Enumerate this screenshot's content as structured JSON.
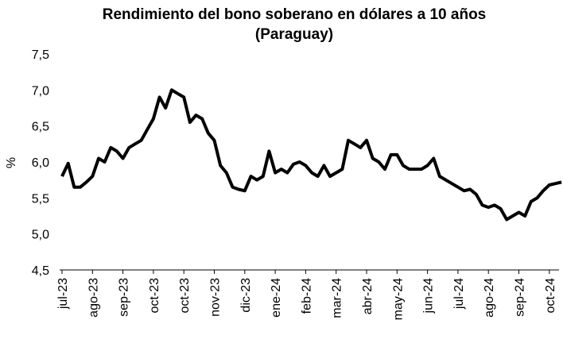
{
  "chart_data": {
    "type": "line",
    "title": [
      "Rendimiento del bono soberano en dólares a 10 años",
      "(Paraguay)"
    ],
    "y_label": "%",
    "color": "#000000",
    "categories": [
      "jul-23",
      null,
      null,
      null,
      null,
      "ago-23",
      null,
      null,
      null,
      null,
      "sep-23",
      null,
      null,
      null,
      null,
      "oct-23",
      null,
      null,
      null,
      null,
      "oct-23",
      null,
      null,
      null,
      null,
      "nov-23",
      null,
      null,
      null,
      null,
      "dic-23",
      null,
      null,
      null,
      null,
      "ene-24",
      null,
      null,
      null,
      null,
      "feb-24",
      null,
      null,
      null,
      null,
      "mar-24",
      null,
      null,
      null,
      null,
      "abr-24",
      null,
      null,
      null,
      null,
      "may-24",
      null,
      null,
      null,
      null,
      "jun-24",
      null,
      null,
      null,
      null,
      "jul-24",
      null,
      null,
      null,
      null,
      "ago-24",
      null,
      null,
      null,
      null,
      "sep-24",
      null,
      null,
      null,
      null,
      "oct-24",
      null,
      null
    ],
    "values": [
      5.8,
      5.98,
      5.65,
      5.65,
      5.72,
      5.8,
      6.05,
      6.0,
      6.2,
      6.15,
      6.05,
      6.2,
      6.25,
      6.3,
      6.45,
      6.6,
      6.9,
      6.75,
      7.0,
      6.95,
      6.9,
      6.55,
      6.65,
      6.6,
      6.4,
      6.3,
      5.95,
      5.85,
      5.65,
      5.62,
      5.6,
      5.8,
      5.75,
      5.8,
      6.15,
      5.85,
      5.9,
      5.85,
      5.97,
      6.0,
      5.95,
      5.85,
      5.8,
      5.95,
      5.8,
      5.85,
      5.9,
      6.3,
      6.25,
      6.2,
      6.3,
      6.05,
      6.0,
      5.9,
      6.1,
      6.1,
      5.95,
      5.9,
      5.9,
      5.9,
      5.95,
      6.05,
      5.8,
      5.75,
      5.7,
      5.65,
      5.6,
      5.62,
      5.55,
      5.4,
      5.37,
      5.4,
      5.35,
      5.2,
      5.25,
      5.3,
      5.25,
      5.45,
      5.5,
      5.6,
      5.68,
      5.7,
      5.72
    ],
    "ylim": [
      4.5,
      7.5
    ],
    "yticks": [
      {
        "value": 4.5,
        "label": "4,5"
      },
      {
        "value": 5.0,
        "label": "5,0"
      },
      {
        "value": 5.5,
        "label": "5,5"
      },
      {
        "value": 6.0,
        "label": "6,0"
      },
      {
        "value": 6.5,
        "label": "6,5"
      },
      {
        "value": 7.0,
        "label": "7,0"
      },
      {
        "value": 7.5,
        "label": "7,5"
      }
    ],
    "grid": false
  }
}
